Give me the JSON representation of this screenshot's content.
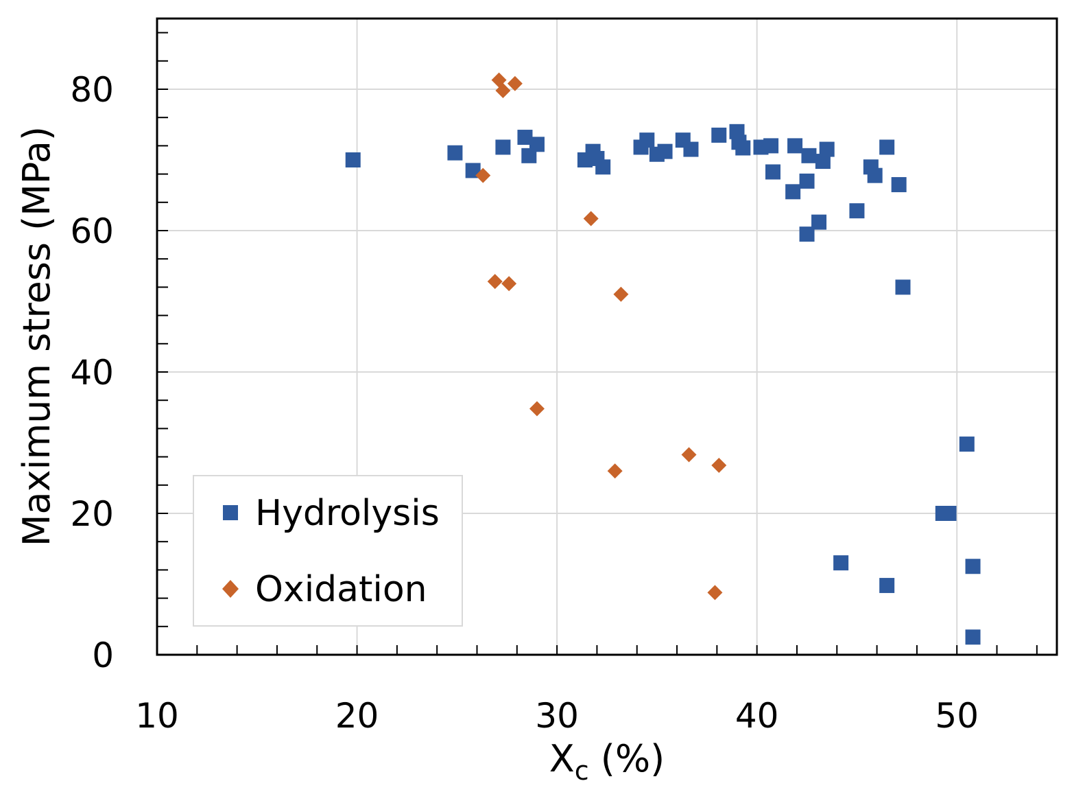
{
  "chart_data": {
    "type": "scatter",
    "title": "",
    "xlabel": "X",
    "xlabel_subscript": "c",
    "xlabel_unit": " (%)",
    "ylabel": "Maximum stress (MPa)",
    "xlim": [
      10,
      55
    ],
    "ylim": [
      0,
      90
    ],
    "xticks": [
      10,
      20,
      30,
      40,
      50
    ],
    "yticks": [
      0,
      20,
      40,
      60,
      80
    ],
    "grid": true,
    "legend_position": "bottom-left",
    "series": [
      {
        "name": "Hydrolysis",
        "marker": "square",
        "color": "#2e5a9e",
        "points": [
          [
            19.8,
            70.0
          ],
          [
            24.9,
            71.0
          ],
          [
            25.8,
            68.5
          ],
          [
            27.3,
            71.8
          ],
          [
            28.4,
            73.2
          ],
          [
            28.6,
            70.6
          ],
          [
            29.0,
            72.2
          ],
          [
            31.4,
            70.0
          ],
          [
            31.8,
            71.2
          ],
          [
            32.0,
            70.2
          ],
          [
            32.3,
            69.0
          ],
          [
            34.2,
            71.8
          ],
          [
            34.5,
            72.8
          ],
          [
            35.0,
            70.8
          ],
          [
            35.4,
            71.2
          ],
          [
            36.3,
            72.8
          ],
          [
            36.7,
            71.5
          ],
          [
            38.1,
            73.5
          ],
          [
            39.0,
            74.0
          ],
          [
            39.1,
            72.5
          ],
          [
            39.3,
            71.7
          ],
          [
            40.2,
            71.8
          ],
          [
            40.7,
            72.0
          ],
          [
            40.8,
            68.3
          ],
          [
            41.8,
            65.5
          ],
          [
            41.9,
            72.0
          ],
          [
            42.5,
            67.0
          ],
          [
            42.6,
            70.6
          ],
          [
            42.5,
            59.5
          ],
          [
            43.1,
            61.2
          ],
          [
            43.3,
            69.8
          ],
          [
            43.5,
            71.5
          ],
          [
            45.0,
            62.8
          ],
          [
            45.7,
            69.0
          ],
          [
            45.9,
            67.8
          ],
          [
            46.5,
            71.8
          ],
          [
            47.1,
            66.5
          ],
          [
            47.3,
            52.0
          ],
          [
            46.5,
            9.8
          ],
          [
            44.2,
            13.0
          ],
          [
            49.3,
            20.0
          ],
          [
            49.6,
            20.0
          ],
          [
            50.5,
            29.8
          ],
          [
            50.8,
            12.5
          ],
          [
            50.8,
            2.5
          ]
        ]
      },
      {
        "name": "Oxidation",
        "marker": "diamond",
        "color": "#c8642a",
        "points": [
          [
            27.1,
            81.3
          ],
          [
            27.3,
            79.8
          ],
          [
            27.9,
            80.8
          ],
          [
            26.3,
            67.8
          ],
          [
            31.7,
            61.7
          ],
          [
            26.9,
            52.8
          ],
          [
            27.6,
            52.5
          ],
          [
            33.2,
            51.0
          ],
          [
            29.0,
            34.8
          ],
          [
            32.9,
            26.0
          ],
          [
            36.6,
            28.3
          ],
          [
            38.1,
            26.8
          ],
          [
            37.9,
            8.8
          ]
        ]
      }
    ]
  }
}
